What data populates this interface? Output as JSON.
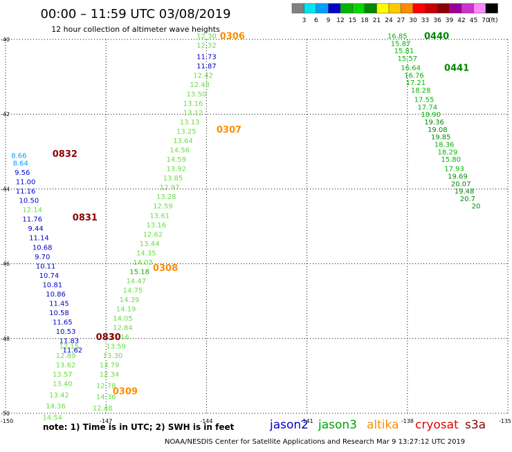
{
  "header": {
    "title": "00:00 – 11:59 UTC 03/08/2019",
    "subtitle": "12 hour collection of altimeter wave heights"
  },
  "color_scale": {
    "unit": "(ft)",
    "colors": [
      "#808080",
      "#00e5ee",
      "#00a0ff",
      "#0000c8",
      "#00b400",
      "#00d800",
      "#008800",
      "#ffff00",
      "#ffc800",
      "#ff8c00",
      "#ff0000",
      "#c80000",
      "#8b0000",
      "#990099",
      "#cc33cc",
      "#ff88ff",
      "#000000"
    ],
    "labels": [
      "3",
      "6",
      "9",
      "12",
      "15",
      "18",
      "21",
      "24",
      "27",
      "30",
      "33",
      "36",
      "39",
      "42",
      "45",
      "70"
    ]
  },
  "chart_data": {
    "type": "map-track",
    "x_range": [
      -150,
      -135
    ],
    "y_range": [
      -50,
      -40
    ],
    "x_ticks": [
      -150,
      -147,
      -144,
      -141,
      -138,
      -135
    ],
    "y_ticks": [
      -40,
      -42,
      -44,
      -46,
      -48,
      -50
    ],
    "x_tick_labels": [
      "-150",
      "-147",
      "-144",
      "-141",
      "-138",
      "-135"
    ],
    "y_tick_labels": [
      "-40",
      "-42",
      "-44",
      "-46",
      "-48",
      "-50"
    ],
    "tracks": [
      {
        "name": "altika-descending",
        "time_labels": [
          {
            "text": "0306",
            "lon": -143.6,
            "lat": -39.9,
            "color": "#ff8c00"
          },
          {
            "text": "0307",
            "lon": -143.7,
            "lat": -42.4,
            "color": "#ff8c00"
          },
          {
            "text": "0308",
            "lon": -145.6,
            "lat": -46.1,
            "color": "#ff8c00"
          },
          {
            "text": "0309",
            "lon": -146.8,
            "lat": -49.4,
            "color": "#ff8c00"
          }
        ],
        "points": [
          {
            "lon": -144.0,
            "lat": -39.9,
            "swh": "12.30",
            "color": "#66dd44"
          },
          {
            "lon": -144.0,
            "lat": -40.15,
            "swh": "12.32",
            "color": "#66dd44"
          },
          {
            "lon": -144.0,
            "lat": -40.45,
            "swh": "11.73",
            "color": "#0000c8"
          },
          {
            "lon": -144.0,
            "lat": -40.7,
            "swh": "11.87",
            "color": "#0000c8"
          },
          {
            "lon": -144.1,
            "lat": -40.95,
            "swh": "12.42",
            "color": "#66dd44"
          },
          {
            "lon": -144.2,
            "lat": -41.2,
            "swh": "12.48",
            "color": "#66dd44"
          },
          {
            "lon": -144.3,
            "lat": -41.45,
            "swh": "13.50",
            "color": "#66dd44"
          },
          {
            "lon": -144.4,
            "lat": -41.7,
            "swh": "13.16",
            "color": "#66dd44"
          },
          {
            "lon": -144.4,
            "lat": -41.95,
            "swh": "13.12",
            "color": "#66dd44"
          },
          {
            "lon": -144.5,
            "lat": -42.2,
            "swh": "13.13",
            "color": "#66dd44"
          },
          {
            "lon": -144.6,
            "lat": -42.45,
            "swh": "13.25",
            "color": "#66dd44"
          },
          {
            "lon": -144.7,
            "lat": -42.7,
            "swh": "13.64",
            "color": "#66dd44"
          },
          {
            "lon": -144.8,
            "lat": -42.95,
            "swh": "14.56",
            "color": "#66dd44"
          },
          {
            "lon": -144.9,
            "lat": -43.2,
            "swh": "14.59",
            "color": "#66dd44"
          },
          {
            "lon": -144.9,
            "lat": -43.45,
            "swh": "13.92",
            "color": "#66dd44"
          },
          {
            "lon": -145.0,
            "lat": -43.7,
            "swh": "13.85",
            "color": "#66dd44"
          },
          {
            "lon": -145.1,
            "lat": -43.95,
            "swh": "12.97",
            "color": "#66dd44"
          },
          {
            "lon": -145.2,
            "lat": -44.2,
            "swh": "13.28",
            "color": "#66dd44"
          },
          {
            "lon": -145.3,
            "lat": -44.45,
            "swh": "12.59",
            "color": "#66dd44"
          },
          {
            "lon": -145.4,
            "lat": -44.7,
            "swh": "13.61",
            "color": "#66dd44"
          },
          {
            "lon": -145.5,
            "lat": -44.95,
            "swh": "13.16",
            "color": "#66dd44"
          },
          {
            "lon": -145.6,
            "lat": -45.2,
            "swh": "12.62",
            "color": "#66dd44"
          },
          {
            "lon": -145.7,
            "lat": -45.45,
            "swh": "13.44",
            "color": "#66dd44"
          },
          {
            "lon": -145.8,
            "lat": -45.7,
            "swh": "14.35",
            "color": "#66dd44"
          },
          {
            "lon": -145.9,
            "lat": -45.95,
            "swh": "14.03",
            "color": "#66dd44"
          },
          {
            "lon": -146.0,
            "lat": -46.2,
            "swh": "15.18",
            "color": "#00b400"
          },
          {
            "lon": -146.1,
            "lat": -46.45,
            "swh": "14.47",
            "color": "#66dd44"
          },
          {
            "lon": -146.2,
            "lat": -46.7,
            "swh": "14.75",
            "color": "#66dd44"
          },
          {
            "lon": -146.3,
            "lat": -46.95,
            "swh": "14.39",
            "color": "#66dd44"
          },
          {
            "lon": -146.4,
            "lat": -47.2,
            "swh": "14.19",
            "color": "#66dd44"
          },
          {
            "lon": -146.5,
            "lat": -47.45,
            "swh": "14.05",
            "color": "#66dd44"
          },
          {
            "lon": -146.5,
            "lat": -47.7,
            "swh": "12.84",
            "color": "#66dd44"
          },
          {
            "lon": -146.6,
            "lat": -47.95,
            "swh": "13.16",
            "color": "#66dd44"
          },
          {
            "lon": -146.7,
            "lat": -48.2,
            "swh": "13.59",
            "color": "#66dd44"
          },
          {
            "lon": -146.8,
            "lat": -48.45,
            "swh": "13.30",
            "color": "#66dd44"
          },
          {
            "lon": -146.9,
            "lat": -48.7,
            "swh": "13.79",
            "color": "#66dd44"
          },
          {
            "lon": -146.9,
            "lat": -48.95,
            "swh": "12.34",
            "color": "#66dd44"
          },
          {
            "lon": -147.0,
            "lat": -49.25,
            "swh": "12.78",
            "color": "#66dd44"
          },
          {
            "lon": -147.0,
            "lat": -49.55,
            "swh": "14.36",
            "color": "#66dd44"
          },
          {
            "lon": -147.1,
            "lat": -49.85,
            "swh": "12.48",
            "color": "#66dd44"
          }
        ]
      },
      {
        "name": "jason3-descending",
        "time_labels": [
          {
            "text": "0830",
            "lon": -147.3,
            "lat": -47.95,
            "color": "#8b0000"
          }
        ],
        "points": [
          {
            "lon": -148.1,
            "lat": -48.2,
            "swh": "12.15",
            "color": "#66dd44"
          },
          {
            "lon": -148.2,
            "lat": -48.45,
            "swh": "12.89",
            "color": "#66dd44"
          },
          {
            "lon": -148.2,
            "lat": -48.7,
            "swh": "13.62",
            "color": "#66dd44"
          },
          {
            "lon": -148.3,
            "lat": -48.95,
            "swh": "13.57",
            "color": "#66dd44"
          },
          {
            "lon": -148.3,
            "lat": -49.2,
            "swh": "13.40",
            "color": "#66dd44"
          },
          {
            "lon": -148.4,
            "lat": -49.5,
            "swh": "13.42",
            "color": "#66dd44"
          },
          {
            "lon": -148.5,
            "lat": -49.8,
            "swh": "14.36",
            "color": "#66dd44"
          },
          {
            "lon": -148.6,
            "lat": -50.1,
            "swh": "14.54",
            "color": "#66dd44"
          }
        ]
      },
      {
        "name": "jason2-descending",
        "time_labels": [
          {
            "text": "0832",
            "lon": -148.6,
            "lat": -43.05,
            "color": "#8b0000"
          },
          {
            "text": "0831",
            "lon": -148.0,
            "lat": -44.75,
            "color": "#8b0000"
          }
        ],
        "points": [
          {
            "lon": -149.6,
            "lat": -43.1,
            "swh": "8.66",
            "color": "#00a0ff"
          },
          {
            "lon": -149.55,
            "lat": -43.3,
            "swh": "8.64",
            "color": "#00a0ff"
          },
          {
            "lon": -149.5,
            "lat": -43.55,
            "swh": "9.56",
            "color": "#0000c8"
          },
          {
            "lon": -149.4,
            "lat": -43.8,
            "swh": "11.00",
            "color": "#0000c8"
          },
          {
            "lon": -149.4,
            "lat": -44.05,
            "swh": "11.16",
            "color": "#0000c8"
          },
          {
            "lon": -149.3,
            "lat": -44.3,
            "swh": "10.50",
            "color": "#0000c8"
          },
          {
            "lon": -149.2,
            "lat": -44.55,
            "swh": "12.14",
            "color": "#66dd44"
          },
          {
            "lon": -149.2,
            "lat": -44.8,
            "swh": "11.76",
            "color": "#0000c8"
          },
          {
            "lon": -149.1,
            "lat": -45.05,
            "swh": "9.44",
            "color": "#0000c8"
          },
          {
            "lon": -149.0,
            "lat": -45.3,
            "swh": "11.14",
            "color": "#0000c8"
          },
          {
            "lon": -148.9,
            "lat": -45.55,
            "swh": "10.68",
            "color": "#0000c8"
          },
          {
            "lon": -148.9,
            "lat": -45.8,
            "swh": "9.70",
            "color": "#0000c8"
          },
          {
            "lon": -148.8,
            "lat": -46.05,
            "swh": "10.11",
            "color": "#0000c8"
          },
          {
            "lon": -148.7,
            "lat": -46.3,
            "swh": "10.74",
            "color": "#0000c8"
          },
          {
            "lon": -148.6,
            "lat": -46.55,
            "swh": "10.81",
            "color": "#0000c8"
          },
          {
            "lon": -148.5,
            "lat": -46.8,
            "swh": "10.86",
            "color": "#0000c8"
          },
          {
            "lon": -148.4,
            "lat": -47.05,
            "swh": "11.45",
            "color": "#0000c8"
          },
          {
            "lon": -148.4,
            "lat": -47.3,
            "swh": "10.58",
            "color": "#0000c8"
          },
          {
            "lon": -148.3,
            "lat": -47.55,
            "swh": "11.65",
            "color": "#0000c8"
          },
          {
            "lon": -148.2,
            "lat": -47.8,
            "swh": "10.53",
            "color": "#0000c8"
          },
          {
            "lon": -148.1,
            "lat": -48.05,
            "swh": "11.83",
            "color": "#0000c8"
          },
          {
            "lon": -148.0,
            "lat": -48.3,
            "swh": "11.62",
            "color": "#0000c8"
          }
        ]
      },
      {
        "name": "jason3-east",
        "time_labels": [
          {
            "text": "0440",
            "lon": -137.5,
            "lat": -39.9,
            "color": "#008800"
          },
          {
            "text": "0441",
            "lon": -136.9,
            "lat": -40.75,
            "color": "#008800"
          }
        ],
        "points": [
          {
            "lon": -138.3,
            "lat": -39.9,
            "swh": "16.85",
            "color": "#00b400"
          },
          {
            "lon": -138.2,
            "lat": -40.1,
            "swh": "15.87",
            "color": "#00b400"
          },
          {
            "lon": -138.1,
            "lat": -40.3,
            "swh": "15.81",
            "color": "#00b400"
          },
          {
            "lon": -138.0,
            "lat": -40.5,
            "swh": "15.57",
            "color": "#00b400"
          },
          {
            "lon": -137.9,
            "lat": -40.75,
            "swh": "16.64",
            "color": "#00b400"
          },
          {
            "lon": -137.8,
            "lat": -40.95,
            "swh": "16.76",
            "color": "#00b400"
          },
          {
            "lon": -137.75,
            "lat": -41.15,
            "swh": "17.21",
            "color": "#00b400"
          },
          {
            "lon": -137.6,
            "lat": -41.35,
            "swh": "18.28",
            "color": "#00b400"
          },
          {
            "lon": -137.5,
            "lat": -41.6,
            "swh": "17.55",
            "color": "#00b400"
          },
          {
            "lon": -137.4,
            "lat": -41.8,
            "swh": "17.74",
            "color": "#00b400"
          },
          {
            "lon": -137.3,
            "lat": -42.0,
            "swh": "18.90",
            "color": "#00b400"
          },
          {
            "lon": -137.2,
            "lat": -42.2,
            "swh": "19.36",
            "color": "#008800"
          },
          {
            "lon": -137.1,
            "lat": -42.4,
            "swh": "19.08",
            "color": "#008800"
          },
          {
            "lon": -137.0,
            "lat": -42.6,
            "swh": "19.85",
            "color": "#008800"
          },
          {
            "lon": -136.9,
            "lat": -42.8,
            "swh": "18.36",
            "color": "#00b400"
          },
          {
            "lon": -136.8,
            "lat": -43.0,
            "swh": "18.29",
            "color": "#00b400"
          },
          {
            "lon": -136.7,
            "lat": -43.2,
            "swh": "15.80",
            "color": "#00b400"
          },
          {
            "lon": -136.6,
            "lat": -43.45,
            "swh": "17.93",
            "color": "#00b400"
          },
          {
            "lon": -136.5,
            "lat": -43.65,
            "swh": "19.69",
            "color": "#008800"
          },
          {
            "lon": -136.4,
            "lat": -43.85,
            "swh": "20.07",
            "color": "#008800"
          },
          {
            "lon": -136.3,
            "lat": -44.05,
            "swh": "19.48",
            "color": "#008800"
          },
          {
            "lon": -136.2,
            "lat": -44.25,
            "swh": "20.7",
            "color": "#008800"
          },
          {
            "lon": -135.95,
            "lat": -44.45,
            "swh": "20",
            "color": "#008800"
          }
        ]
      }
    ]
  },
  "footer": {
    "note": "note:  1) Time is in UTC;  2) SWH is in feet",
    "legend": [
      {
        "label": "jason2",
        "color": "#0000c8"
      },
      {
        "label": "jason3",
        "color": "#00a000"
      },
      {
        "label": "altika",
        "color": "#ff8c00"
      },
      {
        "label": "cryosat",
        "color": "#dd0000"
      },
      {
        "label": "s3a",
        "color": "#880000"
      }
    ],
    "credit": "NOAA/NESDIS Center for Satellite Applications and Research   Mar  9 13:27:12 UTC 2019"
  }
}
